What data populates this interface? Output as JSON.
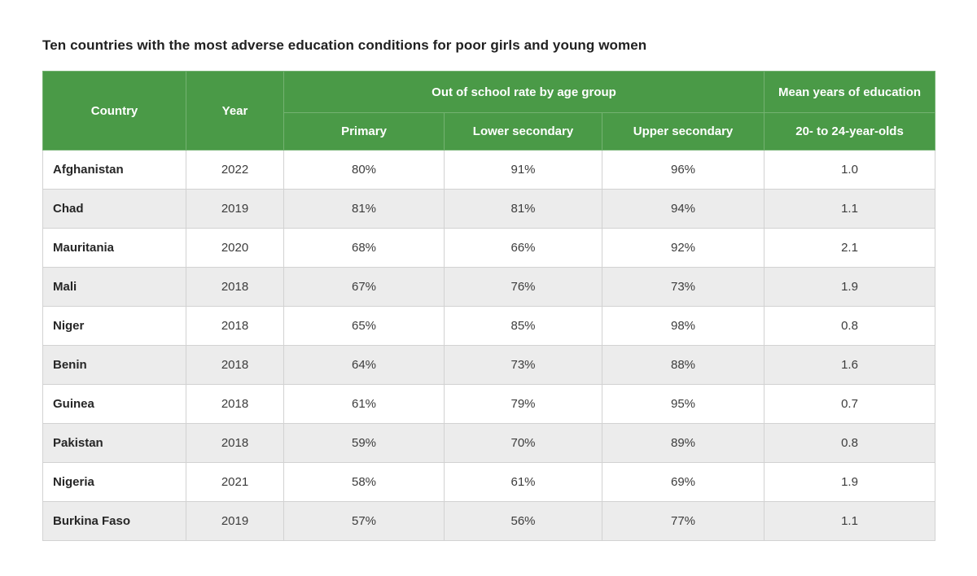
{
  "page": {
    "title": "Ten countries with the most adverse education conditions for poor girls and young women"
  },
  "colors": {
    "header_green": "#4a9a47",
    "header_divider": "#74b271",
    "alt_row_gray": "#ececec",
    "body_border": "#d2d2d2",
    "title_text": "#212121",
    "body_text": "#3c3c3c"
  },
  "chart_data": {
    "type": "table",
    "title": "Ten countries with the most adverse education conditions for poor girls and young women",
    "header": {
      "country": "Country",
      "year": "Year",
      "out_of_school_group": "Out of school rate by age group",
      "primary": "Primary",
      "lower_secondary": "Lower secondary",
      "upper_secondary": "Upper secondary",
      "mean_years_group": "Mean years of education",
      "mean_years_sub": "20- to 24-year-olds"
    },
    "rows": [
      {
        "country": "Afghanistan",
        "year": "2022",
        "primary": "80%",
        "lower_secondary": "91%",
        "upper_secondary": "96%",
        "mean_years": "1.0"
      },
      {
        "country": "Chad",
        "year": "2019",
        "primary": "81%",
        "lower_secondary": "81%",
        "upper_secondary": "94%",
        "mean_years": "1.1"
      },
      {
        "country": "Mauritania",
        "year": "2020",
        "primary": "68%",
        "lower_secondary": "66%",
        "upper_secondary": "92%",
        "mean_years": "2.1"
      },
      {
        "country": "Mali",
        "year": "2018",
        "primary": "67%",
        "lower_secondary": "76%",
        "upper_secondary": "73%",
        "mean_years": "1.9"
      },
      {
        "country": "Niger",
        "year": "2018",
        "primary": "65%",
        "lower_secondary": "85%",
        "upper_secondary": "98%",
        "mean_years": "0.8"
      },
      {
        "country": "Benin",
        "year": "2018",
        "primary": "64%",
        "lower_secondary": "73%",
        "upper_secondary": "88%",
        "mean_years": "1.6"
      },
      {
        "country": "Guinea",
        "year": "2018",
        "primary": "61%",
        "lower_secondary": "79%",
        "upper_secondary": "95%",
        "mean_years": "0.7"
      },
      {
        "country": "Pakistan",
        "year": "2018",
        "primary": "59%",
        "lower_secondary": "70%",
        "upper_secondary": "89%",
        "mean_years": "0.8"
      },
      {
        "country": "Nigeria",
        "year": "2021",
        "primary": "58%",
        "lower_secondary": "61%",
        "upper_secondary": "69%",
        "mean_years": "1.9"
      },
      {
        "country": "Burkina Faso",
        "year": "2019",
        "primary": "57%",
        "lower_secondary": "56%",
        "upper_secondary": "77%",
        "mean_years": "1.1"
      }
    ]
  }
}
